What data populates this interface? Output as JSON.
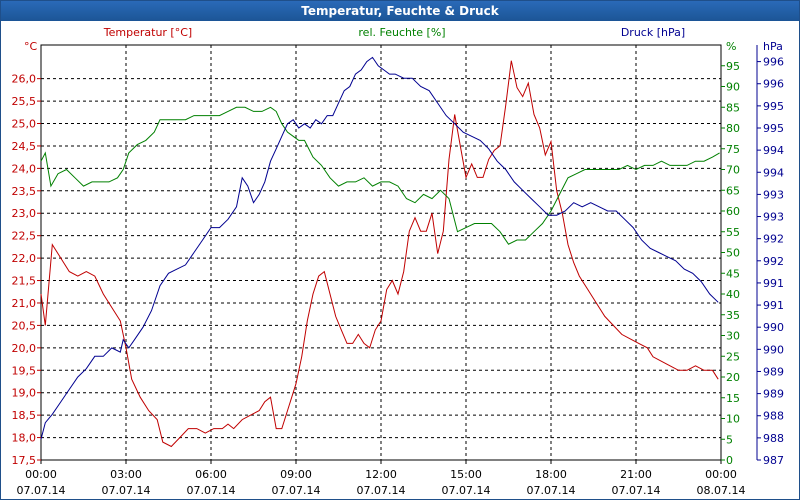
{
  "chart_data": {
    "type": "line",
    "title": "Temperatur, Feuchte & Druck",
    "x_ticks": [
      {
        "time": "00:00",
        "date": "07.07.14"
      },
      {
        "time": "03:00",
        "date": "07.07.14"
      },
      {
        "time": "06:00",
        "date": "07.07.14"
      },
      {
        "time": "09:00",
        "date": "07.07.14"
      },
      {
        "time": "12:00",
        "date": "07.07.14"
      },
      {
        "time": "15:00",
        "date": "07.07.14"
      },
      {
        "time": "18:00",
        "date": "07.07.14"
      },
      {
        "time": "21:00",
        "date": "07.07.14"
      },
      {
        "time": "00:00",
        "date": "08.07.14"
      }
    ],
    "xlim_hours": [
      0,
      24
    ],
    "axes": {
      "temperature": {
        "label": "Temperatur [°C]",
        "unit": "°C",
        "color": "#c00000",
        "ylim": [
          17.5,
          26.75
        ],
        "ticks": [
          "17,5",
          "18,0",
          "18,5",
          "19,0",
          "19,5",
          "20,0",
          "20,5",
          "21,0",
          "21,5",
          "22,0",
          "22,5",
          "23,0",
          "23,5",
          "24,0",
          "24,5",
          "25,0",
          "25,5",
          "26,0"
        ]
      },
      "humidity": {
        "label": "rel. Feuchte [%]",
        "unit": "%",
        "color": "#008000",
        "ylim": [
          0,
          100
        ],
        "ticks": [
          "0",
          "5",
          "10",
          "15",
          "20",
          "25",
          "30",
          "35",
          "40",
          "45",
          "50",
          "55",
          "60",
          "65",
          "70",
          "75",
          "80",
          "85",
          "90",
          "95"
        ]
      },
      "pressure": {
        "label": "Druck [hPa]",
        "unit": "hPa",
        "color": "#000090",
        "ylim": [
          987,
          997
        ],
        "ticks": [
          "987",
          "988",
          "988",
          "989",
          "989",
          "990",
          "990",
          "991",
          "991",
          "992",
          "992",
          "993",
          "993",
          "994",
          "994",
          "995",
          "995",
          "996",
          "996"
        ]
      }
    },
    "series": [
      {
        "name": "Temperatur",
        "axis": "temperature",
        "color": "#c00000",
        "points": [
          [
            0,
            21.2
          ],
          [
            0.15,
            20.5
          ],
          [
            0.4,
            22.3
          ],
          [
            0.7,
            22.0
          ],
          [
            1,
            21.7
          ],
          [
            1.3,
            21.6
          ],
          [
            1.6,
            21.7
          ],
          [
            1.9,
            21.6
          ],
          [
            2.2,
            21.2
          ],
          [
            2.5,
            20.9
          ],
          [
            2.8,
            20.6
          ],
          [
            3.0,
            20.0
          ],
          [
            3.2,
            19.3
          ],
          [
            3.5,
            18.9
          ],
          [
            3.8,
            18.6
          ],
          [
            4.1,
            18.4
          ],
          [
            4.3,
            17.9
          ],
          [
            4.6,
            17.8
          ],
          [
            4.9,
            18.0
          ],
          [
            5.2,
            18.2
          ],
          [
            5.5,
            18.2
          ],
          [
            5.8,
            18.1
          ],
          [
            6.1,
            18.2
          ],
          [
            6.4,
            18.2
          ],
          [
            6.6,
            18.3
          ],
          [
            6.8,
            18.2
          ],
          [
            7.1,
            18.4
          ],
          [
            7.4,
            18.5
          ],
          [
            7.7,
            18.6
          ],
          [
            7.9,
            18.8
          ],
          [
            8.1,
            18.9
          ],
          [
            8.3,
            18.2
          ],
          [
            8.5,
            18.2
          ],
          [
            8.7,
            18.6
          ],
          [
            9.0,
            19.2
          ],
          [
            9.2,
            19.8
          ],
          [
            9.4,
            20.6
          ],
          [
            9.6,
            21.2
          ],
          [
            9.8,
            21.6
          ],
          [
            10.0,
            21.7
          ],
          [
            10.2,
            21.2
          ],
          [
            10.4,
            20.7
          ],
          [
            10.6,
            20.4
          ],
          [
            10.8,
            20.1
          ],
          [
            11.0,
            20.1
          ],
          [
            11.2,
            20.3
          ],
          [
            11.4,
            20.1
          ],
          [
            11.6,
            20.0
          ],
          [
            11.8,
            20.4
          ],
          [
            12.0,
            20.6
          ],
          [
            12.2,
            21.3
          ],
          [
            12.4,
            21.5
          ],
          [
            12.6,
            21.2
          ],
          [
            12.8,
            21.7
          ],
          [
            13.0,
            22.6
          ],
          [
            13.2,
            22.9
          ],
          [
            13.4,
            22.6
          ],
          [
            13.6,
            22.6
          ],
          [
            13.8,
            23.0
          ],
          [
            14.0,
            22.1
          ],
          [
            14.2,
            22.6
          ],
          [
            14.4,
            24.2
          ],
          [
            14.6,
            25.2
          ],
          [
            14.8,
            24.5
          ],
          [
            15.0,
            23.8
          ],
          [
            15.2,
            24.1
          ],
          [
            15.4,
            23.8
          ],
          [
            15.6,
            23.8
          ],
          [
            15.8,
            24.2
          ],
          [
            16.0,
            24.4
          ],
          [
            16.2,
            24.5
          ],
          [
            16.4,
            25.4
          ],
          [
            16.6,
            26.4
          ],
          [
            16.8,
            25.8
          ],
          [
            17.0,
            25.6
          ],
          [
            17.2,
            25.9
          ],
          [
            17.4,
            25.2
          ],
          [
            17.6,
            24.9
          ],
          [
            17.8,
            24.3
          ],
          [
            18.0,
            24.6
          ],
          [
            18.2,
            23.5
          ],
          [
            18.4,
            23.0
          ],
          [
            18.6,
            22.3
          ],
          [
            18.8,
            21.9
          ],
          [
            19.0,
            21.6
          ],
          [
            19.3,
            21.3
          ],
          [
            19.6,
            21.0
          ],
          [
            19.9,
            20.7
          ],
          [
            20.2,
            20.5
          ],
          [
            20.5,
            20.3
          ],
          [
            20.8,
            20.2
          ],
          [
            21.1,
            20.1
          ],
          [
            21.4,
            20.0
          ],
          [
            21.6,
            19.8
          ],
          [
            21.9,
            19.7
          ],
          [
            22.2,
            19.6
          ],
          [
            22.5,
            19.5
          ],
          [
            22.8,
            19.5
          ],
          [
            23.1,
            19.6
          ],
          [
            23.4,
            19.5
          ],
          [
            23.7,
            19.5
          ],
          [
            23.9,
            19.3
          ]
        ]
      },
      {
        "name": "rel. Feuchte",
        "axis": "humidity",
        "color": "#008000",
        "points": [
          [
            0,
            72
          ],
          [
            0.15,
            74
          ],
          [
            0.35,
            66
          ],
          [
            0.6,
            69
          ],
          [
            0.9,
            70
          ],
          [
            1.2,
            68
          ],
          [
            1.5,
            66
          ],
          [
            1.8,
            67
          ],
          [
            2.1,
            67
          ],
          [
            2.4,
            67
          ],
          [
            2.7,
            68
          ],
          [
            2.9,
            70
          ],
          [
            3.1,
            74
          ],
          [
            3.4,
            76
          ],
          [
            3.7,
            77
          ],
          [
            4.0,
            79
          ],
          [
            4.2,
            82
          ],
          [
            4.5,
            82
          ],
          [
            4.8,
            82
          ],
          [
            5.1,
            82
          ],
          [
            5.4,
            83
          ],
          [
            5.7,
            83
          ],
          [
            6.0,
            83
          ],
          [
            6.3,
            83
          ],
          [
            6.6,
            84
          ],
          [
            6.9,
            85
          ],
          [
            7.2,
            85
          ],
          [
            7.5,
            84
          ],
          [
            7.8,
            84
          ],
          [
            8.1,
            85
          ],
          [
            8.3,
            84
          ],
          [
            8.5,
            81
          ],
          [
            8.7,
            79
          ],
          [
            8.9,
            78
          ],
          [
            9.1,
            77
          ],
          [
            9.3,
            77
          ],
          [
            9.6,
            73
          ],
          [
            9.9,
            71
          ],
          [
            10.2,
            68
          ],
          [
            10.5,
            66
          ],
          [
            10.8,
            67
          ],
          [
            11.1,
            67
          ],
          [
            11.4,
            68
          ],
          [
            11.7,
            66
          ],
          [
            12.0,
            67
          ],
          [
            12.3,
            67
          ],
          [
            12.6,
            66
          ],
          [
            12.9,
            63
          ],
          [
            13.2,
            62
          ],
          [
            13.5,
            64
          ],
          [
            13.8,
            63
          ],
          [
            14.1,
            65
          ],
          [
            14.4,
            63
          ],
          [
            14.7,
            55
          ],
          [
            15.0,
            56
          ],
          [
            15.3,
            57
          ],
          [
            15.6,
            57
          ],
          [
            15.9,
            57
          ],
          [
            16.2,
            55
          ],
          [
            16.5,
            52
          ],
          [
            16.8,
            53
          ],
          [
            17.1,
            53
          ],
          [
            17.4,
            55
          ],
          [
            17.7,
            57
          ],
          [
            18.0,
            60
          ],
          [
            18.3,
            64
          ],
          [
            18.6,
            68
          ],
          [
            18.9,
            69
          ],
          [
            19.2,
            70
          ],
          [
            19.5,
            70
          ],
          [
            19.8,
            70
          ],
          [
            20.1,
            70
          ],
          [
            20.4,
            70
          ],
          [
            20.7,
            71
          ],
          [
            21.0,
            70
          ],
          [
            21.3,
            71
          ],
          [
            21.6,
            71
          ],
          [
            21.9,
            72
          ],
          [
            22.2,
            71
          ],
          [
            22.5,
            71
          ],
          [
            22.8,
            71
          ],
          [
            23.1,
            72
          ],
          [
            23.4,
            72
          ],
          [
            23.7,
            73
          ],
          [
            23.95,
            74
          ]
        ]
      },
      {
        "name": "Druck",
        "axis": "pressure",
        "color": "#000090",
        "points": [
          [
            0,
            987.5
          ],
          [
            0.15,
            987.9
          ],
          [
            0.4,
            988.1
          ],
          [
            0.7,
            988.4
          ],
          [
            1.0,
            988.7
          ],
          [
            1.3,
            989.0
          ],
          [
            1.6,
            989.2
          ],
          [
            1.9,
            989.5
          ],
          [
            2.2,
            989.5
          ],
          [
            2.5,
            989.7
          ],
          [
            2.8,
            989.6
          ],
          [
            2.9,
            989.9
          ],
          [
            3.1,
            989.7
          ],
          [
            3.3,
            989.9
          ],
          [
            3.6,
            990.2
          ],
          [
            3.9,
            990.6
          ],
          [
            4.2,
            991.2
          ],
          [
            4.5,
            991.5
          ],
          [
            4.8,
            991.6
          ],
          [
            5.1,
            991.7
          ],
          [
            5.4,
            992.0
          ],
          [
            5.7,
            992.3
          ],
          [
            6.0,
            992.6
          ],
          [
            6.3,
            992.6
          ],
          [
            6.6,
            992.8
          ],
          [
            6.9,
            993.1
          ],
          [
            7.1,
            993.8
          ],
          [
            7.3,
            993.6
          ],
          [
            7.5,
            993.2
          ],
          [
            7.7,
            993.4
          ],
          [
            7.9,
            993.7
          ],
          [
            8.1,
            994.2
          ],
          [
            8.3,
            994.5
          ],
          [
            8.5,
            994.8
          ],
          [
            8.7,
            995.1
          ],
          [
            8.9,
            995.2
          ],
          [
            9.1,
            995.0
          ],
          [
            9.3,
            995.1
          ],
          [
            9.5,
            995.0
          ],
          [
            9.7,
            995.2
          ],
          [
            9.9,
            995.1
          ],
          [
            10.1,
            995.3
          ],
          [
            10.3,
            995.3
          ],
          [
            10.5,
            995.6
          ],
          [
            10.7,
            995.9
          ],
          [
            10.9,
            996.0
          ],
          [
            11.1,
            996.3
          ],
          [
            11.3,
            996.4
          ],
          [
            11.5,
            996.6
          ],
          [
            11.7,
            996.7
          ],
          [
            11.9,
            996.5
          ],
          [
            12.1,
            996.4
          ],
          [
            12.3,
            996.3
          ],
          [
            12.5,
            996.3
          ],
          [
            12.8,
            996.2
          ],
          [
            13.1,
            996.2
          ],
          [
            13.4,
            996.0
          ],
          [
            13.7,
            995.9
          ],
          [
            14.0,
            995.6
          ],
          [
            14.3,
            995.3
          ],
          [
            14.6,
            995.1
          ],
          [
            14.9,
            994.9
          ],
          [
            15.2,
            994.8
          ],
          [
            15.5,
            994.7
          ],
          [
            15.8,
            994.5
          ],
          [
            16.1,
            994.2
          ],
          [
            16.4,
            994.0
          ],
          [
            16.7,
            993.7
          ],
          [
            17.0,
            993.5
          ],
          [
            17.3,
            993.3
          ],
          [
            17.6,
            993.1
          ],
          [
            17.9,
            992.9
          ],
          [
            18.2,
            992.9
          ],
          [
            18.5,
            993.0
          ],
          [
            18.8,
            993.2
          ],
          [
            19.1,
            993.1
          ],
          [
            19.4,
            993.2
          ],
          [
            19.7,
            993.1
          ],
          [
            20.0,
            993.0
          ],
          [
            20.3,
            993.0
          ],
          [
            20.6,
            992.8
          ],
          [
            20.9,
            992.6
          ],
          [
            21.2,
            992.3
          ],
          [
            21.5,
            992.1
          ],
          [
            21.8,
            992.0
          ],
          [
            22.1,
            991.9
          ],
          [
            22.4,
            991.8
          ],
          [
            22.7,
            991.6
          ],
          [
            23.0,
            991.5
          ],
          [
            23.3,
            991.3
          ],
          [
            23.6,
            991.0
          ],
          [
            23.9,
            990.8
          ]
        ]
      }
    ]
  }
}
